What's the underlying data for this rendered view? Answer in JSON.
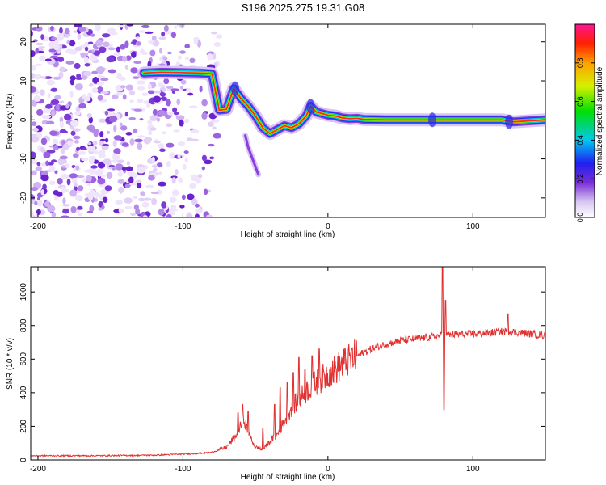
{
  "title": "S196.2025.275.19.31.G08",
  "chart_data": [
    {
      "type": "heatmap",
      "xlabel": "Height of straight line (km)",
      "ylabel": "Frequency (Hz)",
      "xlim": [
        -205,
        150
      ],
      "ylim": [
        -25,
        24.5
      ],
      "xticks": [
        -200,
        -100,
        0,
        100
      ],
      "yticks": [
        -20,
        -10,
        0,
        10,
        20
      ],
      "colorbar": {
        "label": "Normalized spectral amplitude",
        "range": [
          0,
          1
        ],
        "ticks": [
          0.0,
          0.2,
          0.4,
          0.6,
          0.8
        ]
      },
      "ridge": {
        "points": [
          [
            -127,
            12
          ],
          [
            -115,
            12.2
          ],
          [
            -100,
            12.1
          ],
          [
            -88,
            12
          ],
          [
            -80,
            11.8
          ],
          [
            -75,
            2.5
          ],
          [
            -70,
            2.7
          ],
          [
            -65,
            8
          ],
          [
            -60,
            5.5
          ],
          [
            -55,
            3.5
          ],
          [
            -50,
            1
          ],
          [
            -45,
            -2
          ],
          [
            -40,
            -3.5
          ],
          [
            -35,
            -2.5
          ],
          [
            -30,
            -1.5
          ],
          [
            -25,
            -2
          ],
          [
            -20,
            -1
          ],
          [
            -15,
            1
          ],
          [
            -12,
            3.5
          ],
          [
            -8,
            2
          ],
          [
            -3,
            1.5
          ],
          [
            0,
            1.2
          ],
          [
            5,
            1
          ],
          [
            10,
            0.5
          ],
          [
            15,
            0.3
          ],
          [
            20,
            0.4
          ],
          [
            25,
            0.1
          ],
          [
            40,
            0
          ],
          [
            70,
            0
          ],
          [
            75,
            0
          ],
          [
            100,
            0
          ],
          [
            120,
            0
          ],
          [
            128,
            -0.5
          ],
          [
            150,
            0
          ]
        ],
        "branch": [
          [
            -57,
            -4
          ],
          [
            -55,
            -7
          ],
          [
            -52,
            -10
          ],
          [
            -48,
            -14
          ]
        ]
      }
    },
    {
      "type": "line",
      "xlabel": "Height of straight line (km)",
      "ylabel": "SNR (10 * v/v)",
      "xlim": [
        -205,
        150
      ],
      "ylim": [
        0,
        1150
      ],
      "xticks": [
        -200,
        -100,
        0,
        100
      ],
      "yticks": [
        0,
        200,
        400,
        600,
        800,
        1000
      ],
      "color": "#e03030",
      "baseline_points": [
        [
          -205,
          25
        ],
        [
          -160,
          25
        ],
        [
          -120,
          28
        ],
        [
          -90,
          38
        ],
        [
          -80,
          45
        ],
        [
          -70,
          75
        ],
        [
          -62,
          160
        ],
        [
          -58,
          250
        ],
        [
          -55,
          160
        ],
        [
          -50,
          75
        ],
        [
          -45,
          60
        ],
        [
          -40,
          110
        ],
        [
          -35,
          150
        ],
        [
          -30,
          230
        ],
        [
          -25,
          310
        ],
        [
          -20,
          360
        ],
        [
          -15,
          410
        ],
        [
          -10,
          450
        ],
        [
          -5,
          480
        ],
        [
          0,
          510
        ],
        [
          5,
          540
        ],
        [
          10,
          570
        ],
        [
          20,
          620
        ],
        [
          30,
          660
        ],
        [
          40,
          690
        ],
        [
          50,
          710
        ],
        [
          60,
          720
        ],
        [
          70,
          730
        ],
        [
          78,
          740
        ],
        [
          85,
          745
        ],
        [
          100,
          750
        ],
        [
          110,
          755
        ],
        [
          120,
          765
        ],
        [
          130,
          760
        ],
        [
          140,
          750
        ],
        [
          150,
          740
        ]
      ],
      "spikes": [
        [
          -62,
          280
        ],
        [
          -59,
          330
        ],
        [
          -55,
          290
        ],
        [
          -45,
          190
        ],
        [
          -37,
          330
        ],
        [
          -33,
          430
        ],
        [
          -28,
          460
        ],
        [
          -24,
          520
        ],
        [
          -20,
          610
        ],
        [
          -16,
          540
        ],
        [
          -11,
          620
        ],
        [
          -6,
          660
        ],
        [
          79,
          1160
        ],
        [
          80,
          300
        ],
        [
          81,
          950
        ],
        [
          124,
          870
        ]
      ]
    }
  ]
}
